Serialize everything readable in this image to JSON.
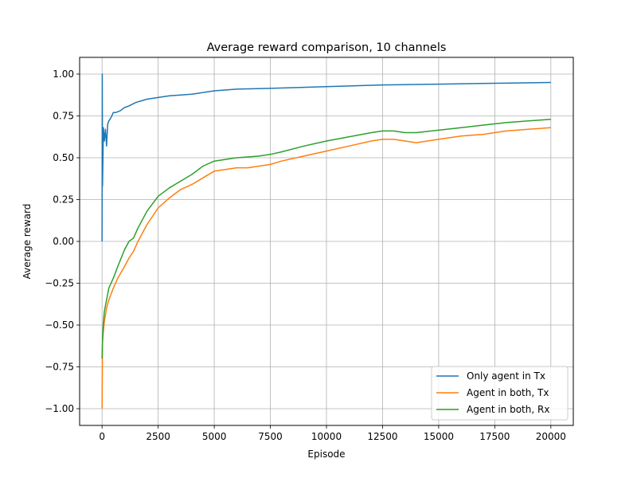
{
  "chart_data": {
    "type": "line",
    "title": "Average reward comparison, 10 channels",
    "xlabel": "Episode",
    "ylabel": "Average reward",
    "xlim": [
      -1000,
      21000
    ],
    "ylim": [
      -1.1,
      1.1
    ],
    "xticks": [
      0,
      2500,
      5000,
      7500,
      10000,
      12500,
      15000,
      17500,
      20000
    ],
    "yticks": [
      -1.0,
      -0.75,
      -0.5,
      -0.25,
      0.0,
      0.25,
      0.5,
      0.75,
      1.0
    ],
    "xtick_labels": [
      "0",
      "2500",
      "5000",
      "7500",
      "10000",
      "12500",
      "15000",
      "17500",
      "20000"
    ],
    "ytick_labels": [
      "−1.00",
      "−0.75",
      "−0.50",
      "−0.25",
      "0.00",
      "0.25",
      "0.50",
      "0.75",
      "1.00"
    ],
    "grid": true,
    "legend_position": "lower-right",
    "series": [
      {
        "name": "Only agent in Tx",
        "color": "#1f77b4",
        "points": [
          [
            0,
            0.0
          ],
          [
            10,
            1.0
          ],
          [
            20,
            0.33
          ],
          [
            40,
            0.5
          ],
          [
            60,
            0.68
          ],
          [
            100,
            0.6
          ],
          [
            150,
            0.67
          ],
          [
            200,
            0.57
          ],
          [
            250,
            0.7
          ],
          [
            300,
            0.72
          ],
          [
            400,
            0.74
          ],
          [
            500,
            0.77
          ],
          [
            600,
            0.77
          ],
          [
            800,
            0.78
          ],
          [
            1000,
            0.8
          ],
          [
            1200,
            0.81
          ],
          [
            1500,
            0.83
          ],
          [
            2000,
            0.85
          ],
          [
            2500,
            0.86
          ],
          [
            3000,
            0.87
          ],
          [
            4000,
            0.88
          ],
          [
            5000,
            0.9
          ],
          [
            6000,
            0.91
          ],
          [
            7500,
            0.915
          ],
          [
            10000,
            0.925
          ],
          [
            12500,
            0.935
          ],
          [
            15000,
            0.94
          ],
          [
            17500,
            0.945
          ],
          [
            20000,
            0.95
          ]
        ]
      },
      {
        "name": "Agent in both, Tx",
        "color": "#ff7f0e",
        "points": [
          [
            0,
            -1.0
          ],
          [
            20,
            -0.6
          ],
          [
            50,
            -0.55
          ],
          [
            100,
            -0.48
          ],
          [
            200,
            -0.4
          ],
          [
            300,
            -0.35
          ],
          [
            500,
            -0.28
          ],
          [
            700,
            -0.22
          ],
          [
            1000,
            -0.15
          ],
          [
            1200,
            -0.1
          ],
          [
            1400,
            -0.06
          ],
          [
            1600,
            0.0
          ],
          [
            2000,
            0.1
          ],
          [
            2500,
            0.2
          ],
          [
            3000,
            0.26
          ],
          [
            3500,
            0.31
          ],
          [
            4000,
            0.34
          ],
          [
            4500,
            0.38
          ],
          [
            5000,
            0.42
          ],
          [
            5500,
            0.43
          ],
          [
            6000,
            0.44
          ],
          [
            6500,
            0.44
          ],
          [
            7000,
            0.45
          ],
          [
            7500,
            0.46
          ],
          [
            8000,
            0.48
          ],
          [
            9000,
            0.51
          ],
          [
            10000,
            0.54
          ],
          [
            11000,
            0.57
          ],
          [
            12000,
            0.6
          ],
          [
            12500,
            0.61
          ],
          [
            13000,
            0.61
          ],
          [
            13500,
            0.6
          ],
          [
            14000,
            0.59
          ],
          [
            15000,
            0.61
          ],
          [
            16000,
            0.63
          ],
          [
            17000,
            0.64
          ],
          [
            18000,
            0.66
          ],
          [
            19000,
            0.67
          ],
          [
            20000,
            0.68
          ]
        ]
      },
      {
        "name": "Agent in both, Rx",
        "color": "#2ca02c",
        "points": [
          [
            0,
            -0.7
          ],
          [
            20,
            -0.6
          ],
          [
            50,
            -0.5
          ],
          [
            100,
            -0.42
          ],
          [
            200,
            -0.35
          ],
          [
            300,
            -0.28
          ],
          [
            500,
            -0.22
          ],
          [
            700,
            -0.15
          ],
          [
            1000,
            -0.05
          ],
          [
            1200,
            0.0
          ],
          [
            1400,
            0.02
          ],
          [
            1600,
            0.08
          ],
          [
            2000,
            0.18
          ],
          [
            2500,
            0.27
          ],
          [
            3000,
            0.32
          ],
          [
            3500,
            0.36
          ],
          [
            4000,
            0.4
          ],
          [
            4500,
            0.45
          ],
          [
            5000,
            0.48
          ],
          [
            5500,
            0.49
          ],
          [
            6000,
            0.5
          ],
          [
            6500,
            0.505
          ],
          [
            7000,
            0.51
          ],
          [
            7500,
            0.52
          ],
          [
            8000,
            0.535
          ],
          [
            9000,
            0.57
          ],
          [
            10000,
            0.6
          ],
          [
            11000,
            0.625
          ],
          [
            12000,
            0.65
          ],
          [
            12500,
            0.66
          ],
          [
            13000,
            0.66
          ],
          [
            13500,
            0.65
          ],
          [
            14000,
            0.65
          ],
          [
            15000,
            0.665
          ],
          [
            16000,
            0.68
          ],
          [
            17000,
            0.695
          ],
          [
            18000,
            0.71
          ],
          [
            19000,
            0.72
          ],
          [
            20000,
            0.73
          ]
        ]
      }
    ]
  }
}
